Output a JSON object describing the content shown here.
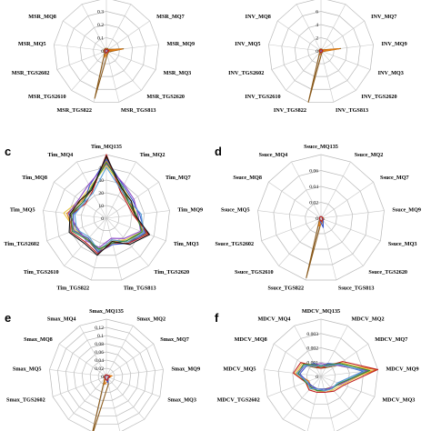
{
  "chart_data": [
    {
      "type": "radar",
      "panel": "a",
      "panel_letter": "",
      "spokes": [
        "MSR_MQ135",
        "MSR_MQ2",
        "MSR_MQ7",
        "MSR_MQ9",
        "MSR_MQ3",
        "MSR_TGS2620",
        "MSR_TGS813",
        "MSR_TGS822",
        "MSR_TGS2610",
        "MSR_TGS2602",
        "MSR_MQ5",
        "MSR_MQ8",
        "MSR_MQ4"
      ],
      "visible_spokes": [
        "MSR_MQ7",
        "MSR_MQ9",
        "MSR_MQ3",
        "MSR_TGS2620",
        "MSR_TGS813",
        "MSR_TGS822",
        "MSR_TGS2610",
        "MSR_TGS2602",
        "MSR_MQ5",
        "MSR_MQ8"
      ],
      "ticks": [
        "0",
        "0.1",
        "0.2",
        "0.3"
      ],
      "rmax": 0.4,
      "grid": true,
      "series": [
        {
          "color": "#8a5a1c",
          "values": [
            0.02,
            0.02,
            0.02,
            0.13,
            0.02,
            0.02,
            0.03,
            0.37,
            0.02,
            0.02,
            0.02,
            0.02,
            0.02
          ]
        },
        {
          "color": "#e07a10",
          "values": [
            0.015,
            0.01,
            0.01,
            0.12,
            0.01,
            0.01,
            0.02,
            0.05,
            0.01,
            0.01,
            0.01,
            0.01,
            0.01
          ]
        },
        {
          "color": "#3a55c8",
          "values": [
            0.01,
            0.01,
            0.01,
            0.01,
            0.01,
            0.01,
            0.01,
            0.02,
            0.01,
            0.01,
            0.01,
            0.01,
            0.01
          ]
        },
        {
          "color": "#c02020",
          "values": [
            0.012,
            0.012,
            0.012,
            0.02,
            0.012,
            0.012,
            0.012,
            0.015,
            0.012,
            0.012,
            0.012,
            0.012,
            0.012
          ]
        }
      ]
    },
    {
      "type": "radar",
      "panel": "b",
      "panel_letter": "",
      "spokes": [
        "INV_MQ135",
        "INV_MQ2",
        "INV_MQ7",
        "INV_MQ9",
        "INV_MQ3",
        "INV_TGS2620",
        "INV_TGS813",
        "INV_TGS822",
        "INV_TGS2610",
        "INV_TGS2602",
        "INV_MQ5",
        "INV_MQ8",
        "INV_MQ4"
      ],
      "visible_spokes": [
        "INV_MQ7",
        "INV_MQ9",
        "INV_MQ3",
        "INV_TGS2620",
        "INV_TGS813",
        "INV_TGS822",
        "INV_TGS2610",
        "INV_TGS2602",
        "INV_MQ5",
        "INV_MQ8"
      ],
      "ticks": [
        "0",
        "2",
        "4",
        "6"
      ],
      "rmax": 8,
      "grid": true,
      "series": [
        {
          "color": "#8a5a1c",
          "values": [
            0.3,
            0.3,
            0.3,
            3.0,
            0.3,
            0.3,
            0.4,
            8.0,
            0.3,
            0.3,
            0.3,
            0.3,
            0.3
          ]
        },
        {
          "color": "#e07a10",
          "values": [
            0.2,
            0.2,
            0.2,
            2.8,
            0.2,
            0.2,
            0.2,
            0.6,
            0.2,
            0.2,
            0.2,
            0.2,
            0.2
          ]
        },
        {
          "color": "#3a55c8",
          "values": [
            0.15,
            0.15,
            0.15,
            0.2,
            0.15,
            0.15,
            0.15,
            0.3,
            0.15,
            0.15,
            0.15,
            0.15,
            0.15
          ]
        },
        {
          "color": "#c02020",
          "values": [
            0.2,
            0.2,
            0.2,
            0.3,
            0.2,
            0.2,
            0.2,
            0.25,
            0.2,
            0.2,
            0.2,
            0.2,
            0.2
          ]
        }
      ]
    },
    {
      "type": "radar",
      "panel": "c",
      "panel_letter": "c",
      "spokes": [
        "Tim_MQ135",
        "Tim_MQ2",
        "Tim_MQ7",
        "Tim_MQ9",
        "Tim_MQ3",
        "Tim_TGS2620",
        "Tim_TGS813",
        "Tim_TGS822",
        "Tim_TGS2610",
        "Tim_TGS2602",
        "Tim_MQ5",
        "Tim_MQ8",
        "Tim_MQ4"
      ],
      "visible_spokes": [
        "Tim_MQ135",
        "Tim_MQ2",
        "Tim_MQ7",
        "Tim_MQ9",
        "Tim_MQ3",
        "Tim_TGS2620",
        "Tim_TGS813",
        "Tim_TGS822",
        "Tim_TGS2610",
        "Tim_TGS2602",
        "Tim_MQ5",
        "Tim_MQ8",
        "Tim_MQ4"
      ],
      "ticks": [
        "0",
        "10",
        "20",
        "30",
        "40"
      ],
      "rmax": 40,
      "grid": true,
      "series": [
        {
          "color": "#8a5a1c",
          "values": [
            38,
            20,
            17,
            18,
            27,
            20,
            14,
            22,
            18,
            20,
            23,
            18,
            20
          ]
        },
        {
          "color": "#e07a10",
          "values": [
            36,
            21,
            18,
            18,
            25,
            19,
            15,
            21,
            17,
            22,
            25,
            19,
            21
          ]
        },
        {
          "color": "#e8c84a",
          "values": [
            33,
            22,
            19,
            19,
            24,
            18,
            15,
            20,
            18,
            21,
            27,
            20,
            22
          ]
        },
        {
          "color": "#3a55c8",
          "values": [
            37,
            23,
            20,
            21,
            26,
            21,
            17,
            22,
            17,
            22,
            21,
            17,
            23
          ]
        },
        {
          "color": "#c02020",
          "values": [
            40,
            19,
            16,
            17,
            28,
            21,
            16,
            23,
            20,
            24,
            22,
            16,
            19
          ]
        },
        {
          "color": "#8d49c8",
          "values": [
            34,
            24,
            21,
            20,
            23,
            17,
            13,
            19,
            19,
            19,
            24,
            21,
            24
          ]
        },
        {
          "color": "#5aa0d8",
          "values": [
            32,
            20,
            18,
            22,
            25,
            20,
            14,
            21,
            16,
            20,
            20,
            17,
            18
          ]
        },
        {
          "color": "#2e8b3a",
          "values": [
            35,
            22,
            17,
            19,
            24,
            19,
            16,
            20,
            18,
            23,
            22,
            18,
            21
          ]
        },
        {
          "color": "#111111",
          "values": [
            39,
            21,
            19,
            18,
            29,
            22,
            15,
            24,
            21,
            25,
            23,
            20,
            20
          ]
        }
      ]
    },
    {
      "type": "radar",
      "panel": "d",
      "panel_letter": "d",
      "spokes": [
        "Ssuce_MQ135",
        "Ssuce_MQ2",
        "Ssuce_MQ7",
        "Ssuce_MQ9",
        "Ssuce_MQ3",
        "Ssuce_TGS2620",
        "Ssuce_TGS813",
        "Ssuce_TGS822",
        "Ssuce_TGS2610",
        "Ssuce_TGS2602",
        "Ssuce_MQ5",
        "Ssuce_MQ8",
        "Ssuce_MQ4"
      ],
      "visible_spokes": [
        "Ssuce_MQ135",
        "Ssuce_MQ2",
        "Ssuce_MQ7",
        "Ssuce_MQ9",
        "Ssuce_MQ3",
        "Ssuce_TGS2620",
        "Ssuce_TGS813",
        "Ssuce_TGS822",
        "Ssuce_TGS2610",
        "Ssuce_TGS2602",
        "Ssuce_MQ5",
        "Ssuce_MQ8",
        "Ssuce_MQ4"
      ],
      "ticks": [
        "0",
        "0.02",
        "0.04",
        "0.06"
      ],
      "rmax": 0.08,
      "grid": true,
      "series": [
        {
          "color": "#8a5a1c",
          "values": [
            0.002,
            0.002,
            0.002,
            0.003,
            0.004,
            0.003,
            0.003,
            0.077,
            0.003,
            0.002,
            0.002,
            0.002,
            0.002
          ]
        },
        {
          "color": "#e07a10",
          "values": [
            0.002,
            0.002,
            0.002,
            0.003,
            0.003,
            0.004,
            0.006,
            0.01,
            0.002,
            0.002,
            0.002,
            0.002,
            0.002
          ]
        },
        {
          "color": "#3a55c8",
          "values": [
            0.002,
            0.002,
            0.002,
            0.002,
            0.003,
            0.004,
            0.012,
            0.004,
            0.002,
            0.002,
            0.002,
            0.002,
            0.002
          ]
        },
        {
          "color": "#c02020",
          "values": [
            0.002,
            0.002,
            0.002,
            0.002,
            0.002,
            0.003,
            0.004,
            0.003,
            0.002,
            0.002,
            0.002,
            0.002,
            0.002
          ]
        }
      ]
    },
    {
      "type": "radar",
      "panel": "e",
      "panel_letter": "e",
      "spokes": [
        "Smax_MQ135",
        "Smax_MQ2",
        "Smax_MQ7",
        "Smax_MQ9",
        "Smax_MQ3",
        "Smax_TGS2620",
        "Smax_TGS813",
        "Smax_TGS822",
        "Smax_TGS2610",
        "Smax_TGS2602",
        "Smax_MQ5",
        "Smax_MQ8",
        "Smax_MQ4"
      ],
      "visible_spokes": [
        "Smax_MQ135",
        "Smax_MQ2",
        "Smax_MQ7",
        "Smax_MQ9",
        "Smax_MQ3",
        "Smax_TGS2602",
        "Smax_MQ5",
        "Smax_MQ8",
        "Smax_MQ4"
      ],
      "ticks": [
        "0",
        "0.02",
        "0.04",
        "0.06",
        "0.08",
        "0.1",
        "0.12"
      ],
      "rmax": 0.14,
      "grid": true,
      "series": [
        {
          "color": "#8a5a1c",
          "values": [
            0.004,
            0.004,
            0.004,
            0.012,
            0.008,
            0.006,
            0.02,
            0.16,
            0.006,
            0.006,
            0.005,
            0.004,
            0.004
          ]
        },
        {
          "color": "#e07a10",
          "values": [
            0.003,
            0.003,
            0.004,
            0.014,
            0.007,
            0.005,
            0.012,
            0.02,
            0.005,
            0.005,
            0.004,
            0.003,
            0.003
          ]
        },
        {
          "color": "#3a55c8",
          "values": [
            0.003,
            0.003,
            0.003,
            0.006,
            0.006,
            0.006,
            0.016,
            0.006,
            0.004,
            0.004,
            0.003,
            0.003,
            0.003
          ]
        },
        {
          "color": "#c02020",
          "values": [
            0.004,
            0.004,
            0.004,
            0.008,
            0.007,
            0.005,
            0.01,
            0.008,
            0.005,
            0.005,
            0.004,
            0.004,
            0.004
          ]
        }
      ]
    },
    {
      "type": "radar",
      "panel": "f",
      "panel_letter": "f",
      "spokes": [
        "MDCV_MQ135",
        "MDCV_MQ2",
        "MDCV_MQ7",
        "MDCV_MQ9",
        "MDCV_MQ3",
        "MDCV_TGS2620",
        "MDCV_TGS813",
        "MDCV_TGS822",
        "MDCV_TGS2610",
        "MDCV_TGS2602",
        "MDCV_MQ5",
        "MDCV_MQ8",
        "MDCV_MQ4"
      ],
      "visible_spokes": [
        "MDCV_MQ135",
        "MDCV_MQ2",
        "MDCV_MQ7",
        "MDCV_MQ9",
        "MDCV_MQ3",
        "MDCV_TGS2602",
        "MDCV_MQ5",
        "MDCV_MQ8",
        "MDCV_MQ4"
      ],
      "ticks": [
        "0",
        "0.001",
        "0.002",
        "0.003"
      ],
      "rmax": 0.0035,
      "grid": true,
      "series": [
        {
          "color": "#8a5a1c",
          "values": [
            0.0005,
            0.0006,
            0.0012,
            0.0028,
            0.0013,
            0.0009,
            0.0008,
            0.0008,
            0.0008,
            0.0009,
            0.0014,
            0.0012,
            0.0006
          ]
        },
        {
          "color": "#e07a10",
          "values": [
            0.0006,
            0.0007,
            0.0014,
            0.0034,
            0.0012,
            0.001,
            0.0009,
            0.0009,
            0.0009,
            0.0008,
            0.0015,
            0.0013,
            0.0007
          ]
        },
        {
          "color": "#e8c84a",
          "values": [
            0.0007,
            0.0008,
            0.0015,
            0.0031,
            0.0014,
            0.0011,
            0.001,
            0.0009,
            0.001,
            0.001,
            0.0016,
            0.0014,
            0.0008
          ]
        },
        {
          "color": "#3a55c8",
          "values": [
            0.0006,
            0.0009,
            0.0013,
            0.0026,
            0.0011,
            0.001,
            0.0008,
            0.0008,
            0.0008,
            0.0009,
            0.0013,
            0.0011,
            0.0009
          ]
        },
        {
          "color": "#c02020",
          "values": [
            0.0005,
            0.0007,
            0.0016,
            0.0035,
            0.0015,
            0.0012,
            0.001,
            0.001,
            0.0011,
            0.001,
            0.0017,
            0.0015,
            0.0007
          ]
        },
        {
          "color": "#8d49c8",
          "values": [
            0.0008,
            0.0008,
            0.0012,
            0.0029,
            0.0013,
            0.0009,
            0.0009,
            0.0008,
            0.0009,
            0.0009,
            0.0014,
            0.0012,
            0.0008
          ]
        },
        {
          "color": "#2e8b3a",
          "values": [
            0.0006,
            0.0008,
            0.0014,
            0.003,
            0.0012,
            0.001,
            0.0009,
            0.0009,
            0.0009,
            0.001,
            0.0014,
            0.0013,
            0.0008
          ]
        },
        {
          "color": "#5aa0d8",
          "values": [
            0.0007,
            0.0007,
            0.0013,
            0.0027,
            0.0011,
            0.001,
            0.0009,
            0.0008,
            0.001,
            0.0009,
            0.0015,
            0.0012,
            0.0007
          ]
        }
      ]
    }
  ]
}
